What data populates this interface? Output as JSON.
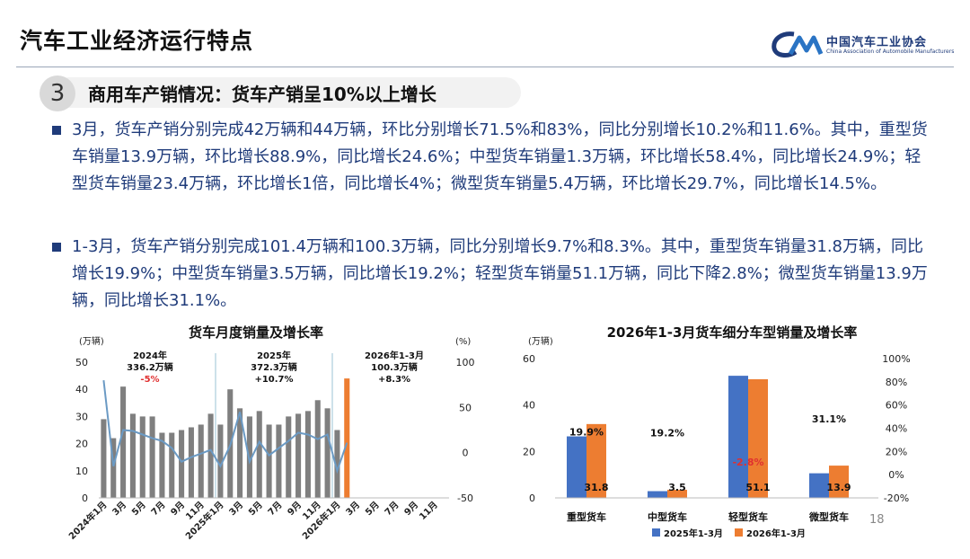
{
  "header": {
    "title": "汽车工业经济运行特点",
    "logo_cn": "中国汽车工业协会",
    "logo_en": "China Association of Automobile Manufacturers"
  },
  "section": {
    "number": "3",
    "title": "商用车产销情况：货车产销呈10%以上增长"
  },
  "bullets": [
    "3月，货车产销分别完成42万辆和44万辆，环比分别增长71.5%和83%，同比分别增长10.2%和11.6%。其中，重型货车销量13.9万辆，环比增长88.9%，同比增长24.6%；中型货车销量1.3万辆，环比增长58.4%，同比增长24.9%；轻型货车销量23.4万辆，环比增长1倍，同比增长4%；微型货车销量5.4万辆，环比增长29.7%，同比增长14.5%。",
    "1-3月，货车产销分别完成101.4万辆和100.3万辆，同比分别增长9.7%和8.3%。其中，重型货车销量31.8万辆，同比增长19.9%；中型货车销量3.5万辆，同比增长19.2%；轻型货车销量51.1万辆，同比下降2.8%；微型货车销量13.9万辆，同比增长31.1%。"
  ],
  "page_number": "18",
  "colors": {
    "gray_bar": "#7f7f7f",
    "line": "#6b9ac4",
    "orange": "#ed7d31",
    "blue": "#4472c4",
    "navy": "#1f3b7a",
    "red": "#e03030"
  },
  "chart_data": [
    {
      "type": "bar",
      "title": "货车月度销量及增长率",
      "y_unit_left": "(万辆)",
      "y_unit_right": "(%)",
      "ylim": [
        0,
        50
      ],
      "y2lim": [
        -50,
        100
      ],
      "yticks": [
        "0",
        "10",
        "20",
        "30",
        "40",
        "50"
      ],
      "y2ticks": [
        "-50",
        "0",
        "50",
        "100"
      ],
      "x_tick_labels": [
        "2024年1月",
        "3月",
        "5月",
        "7月",
        "9月",
        "11月",
        "2025年1月",
        "3月",
        "5月",
        "7月",
        "9月",
        "11月",
        "2026年1月",
        "3月",
        "5月",
        "7月",
        "9月",
        "11月"
      ],
      "series": [
        {
          "values": [
            29,
            22,
            41,
            31,
            30,
            30,
            24,
            24,
            25,
            26,
            27,
            31,
            27,
            40,
            33,
            30,
            32,
            27,
            27,
            30,
            31,
            32,
            36,
            33,
            25,
            44
          ]
        },
        {
          "values": [
            80,
            -15,
            25,
            24,
            20,
            16,
            13,
            5,
            -10,
            -5,
            -1,
            3,
            -15,
            8,
            45,
            -10,
            12,
            -3,
            5,
            13,
            22,
            20,
            15,
            20,
            -20,
            11
          ]
        }
      ],
      "annotations": [
        {
          "line1": "2024年",
          "line2": "336.2万辆",
          "line3": "-5%",
          "negative": true
        },
        {
          "line1": "2025年",
          "line2": "372.3万辆",
          "line3": "+10.7%",
          "negative": false
        },
        {
          "line1": "2026年1-3月",
          "line2": "100.3万辆",
          "line3": "+8.3%",
          "negative": false
        }
      ]
    },
    {
      "type": "bar",
      "title": "2026年1-3月货车细分车型销量及增长率",
      "y_unit_left": "(万辆)",
      "ylim": [
        0,
        60
      ],
      "y2lim": [
        -20,
        100
      ],
      "yticks": [
        "0",
        "20",
        "40",
        "60"
      ],
      "y2ticks": [
        "-20%",
        "0%",
        "20%",
        "40%",
        "60%",
        "80%",
        "100%"
      ],
      "categories": [
        "重型货车",
        "中型货车",
        "轻型货车",
        "微型货车"
      ],
      "series": [
        {
          "name": "2025年1-3月",
          "values": [
            26.5,
            2.9,
            52.6,
            10.6
          ]
        },
        {
          "name": "2026年1-3月",
          "values": [
            31.8,
            3.5,
            51.1,
            13.9
          ]
        }
      ],
      "value_labels": [
        "31.8",
        "3.5",
        "51.1",
        "13.9"
      ],
      "growth_labels": [
        "19.9%",
        "19.2%",
        "-2.8%",
        "31.1%"
      ],
      "growth_values": [
        19.9,
        19.2,
        -2.8,
        31.1
      ]
    }
  ]
}
